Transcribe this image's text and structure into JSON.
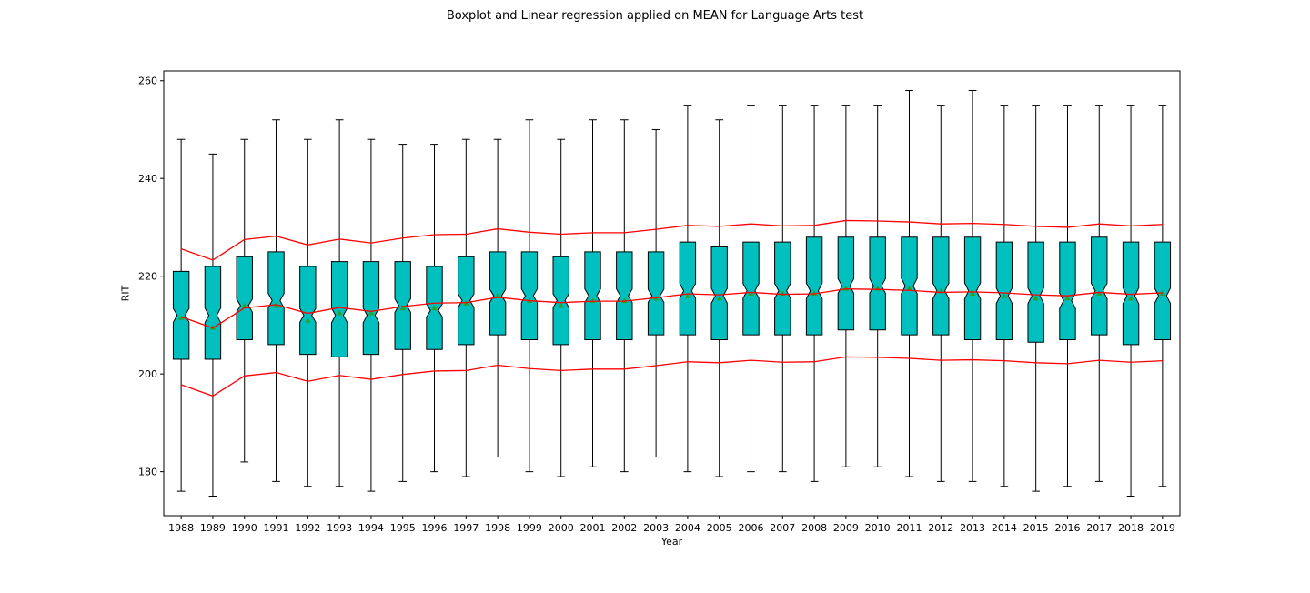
{
  "chart_data": {
    "type": "boxplot",
    "title": "Boxplot and Linear regression applied on MEAN for Language Arts test",
    "xlabel": "Year",
    "ylabel": "RIT",
    "ylim": [
      171,
      262
    ],
    "yticks": [
      180,
      200,
      220,
      240,
      260
    ],
    "colors": {
      "box_fill": "#00bfbf",
      "box_edge": "#000000",
      "regression_line": "#ff0000",
      "mean_marker": "#2ca02c"
    },
    "categories": [
      "1988",
      "1989",
      "1990",
      "1991",
      "1992",
      "1993",
      "1994",
      "1995",
      "1996",
      "1997",
      "1998",
      "1999",
      "2000",
      "2001",
      "2002",
      "2003",
      "2004",
      "2005",
      "2006",
      "2007",
      "2008",
      "2009",
      "2010",
      "2011",
      "2012",
      "2013",
      "2014",
      "2015",
      "2016",
      "2017",
      "2018",
      "2019"
    ],
    "boxes": [
      {
        "whislo": 176,
        "q1": 203,
        "med": 212,
        "q3": 221,
        "whishi": 248,
        "mean": 211.5
      },
      {
        "whislo": 175,
        "q1": 203,
        "med": 212,
        "q3": 222,
        "whishi": 245,
        "mean": 209.5
      },
      {
        "whislo": 182,
        "q1": 207,
        "med": 214,
        "q3": 224,
        "whishi": 248,
        "mean": 214
      },
      {
        "whislo": 178,
        "q1": 206,
        "med": 215,
        "q3": 225,
        "whishi": 252,
        "mean": 214
      },
      {
        "whislo": 177,
        "q1": 204,
        "med": 212,
        "q3": 222,
        "whishi": 248,
        "mean": 211
      },
      {
        "whislo": 177,
        "q1": 203.5,
        "med": 212,
        "q3": 223,
        "whishi": 252,
        "mean": 212.5
      },
      {
        "whislo": 176,
        "q1": 204,
        "med": 212,
        "q3": 223,
        "whishi": 248,
        "mean": 212.5
      },
      {
        "whislo": 178,
        "q1": 205,
        "med": 214,
        "q3": 223,
        "whishi": 247,
        "mean": 213.5
      },
      {
        "whislo": 180,
        "q1": 205,
        "med": 213,
        "q3": 222,
        "whishi": 247,
        "mean": 213.5
      },
      {
        "whislo": 179,
        "q1": 206,
        "med": 215,
        "q3": 224,
        "whishi": 248,
        "mean": 214.5
      },
      {
        "whislo": 183,
        "q1": 208,
        "med": 216,
        "q3": 225,
        "whishi": 248,
        "mean": 216
      },
      {
        "whislo": 180,
        "q1": 207,
        "med": 216,
        "q3": 225,
        "whishi": 252,
        "mean": 215
      },
      {
        "whislo": 179,
        "q1": 206,
        "med": 215,
        "q3": 224,
        "whishi": 248,
        "mean": 214
      },
      {
        "whislo": 181,
        "q1": 207,
        "med": 216,
        "q3": 225,
        "whishi": 252,
        "mean": 215
      },
      {
        "whislo": 180,
        "q1": 207,
        "med": 216,
        "q3": 225,
        "whishi": 252,
        "mean": 215
      },
      {
        "whislo": 183,
        "q1": 208,
        "med": 216,
        "q3": 225,
        "whishi": 250,
        "mean": 215.5
      },
      {
        "whislo": 180,
        "q1": 208,
        "med": 217,
        "q3": 227,
        "whishi": 255,
        "mean": 216
      },
      {
        "whislo": 179,
        "q1": 207,
        "med": 216,
        "q3": 226,
        "whishi": 252,
        "mean": 215.5
      },
      {
        "whislo": 180,
        "q1": 208,
        "med": 217,
        "q3": 227,
        "whishi": 255,
        "mean": 216.5
      },
      {
        "whislo": 180,
        "q1": 208,
        "med": 217,
        "q3": 227,
        "whishi": 255,
        "mean": 216.5
      },
      {
        "whislo": 178,
        "q1": 208,
        "med": 217,
        "q3": 228,
        "whishi": 255,
        "mean": 216.5
      },
      {
        "whislo": 181,
        "q1": 209,
        "med": 218,
        "q3": 228,
        "whishi": 255,
        "mean": 217.5
      },
      {
        "whislo": 181,
        "q1": 209,
        "med": 218,
        "q3": 228,
        "whishi": 255,
        "mean": 217.5
      },
      {
        "whislo": 179,
        "q1": 208,
        "med": 218,
        "q3": 228,
        "whishi": 258,
        "mean": 217.5
      },
      {
        "whislo": 178,
        "q1": 208,
        "med": 217,
        "q3": 228,
        "whishi": 255,
        "mean": 217
      },
      {
        "whislo": 178,
        "q1": 207,
        "med": 217,
        "q3": 228,
        "whishi": 258,
        "mean": 216.5
      },
      {
        "whislo": 177,
        "q1": 207,
        "med": 216,
        "q3": 227,
        "whishi": 255,
        "mean": 216
      },
      {
        "whislo": 176,
        "q1": 206.5,
        "med": 216,
        "q3": 227,
        "whishi": 255,
        "mean": 215.5
      },
      {
        "whislo": 177,
        "q1": 207,
        "med": 215,
        "q3": 227,
        "whishi": 255,
        "mean": 215.5
      },
      {
        "whislo": 178,
        "q1": 208,
        "med": 217,
        "q3": 228,
        "whishi": 255,
        "mean": 216.5
      },
      {
        "whislo": 175,
        "q1": 206,
        "med": 216,
        "q3": 227,
        "whishi": 255,
        "mean": 215.5
      },
      {
        "whislo": 177,
        "q1": 207,
        "med": 216,
        "q3": 227,
        "whishi": 255,
        "mean": 216.5
      }
    ],
    "regression_mean": [
      211.7,
      209.4,
      213.5,
      214.2,
      212.4,
      213.6,
      212.8,
      213.8,
      214.5,
      214.6,
      215.7,
      215.0,
      214.6,
      214.9,
      214.9,
      215.6,
      216.4,
      216.2,
      216.7,
      216.3,
      216.4,
      217.4,
      217.3,
      217.1,
      216.7,
      216.8,
      216.6,
      216.2,
      216.0,
      216.7,
      216.3,
      216.6
    ],
    "regression_upper": [
      225.6,
      223.3,
      227.5,
      228.2,
      226.4,
      227.6,
      226.8,
      227.8,
      228.5,
      228.6,
      229.7,
      229.0,
      228.6,
      228.9,
      228.9,
      229.6,
      230.4,
      230.2,
      230.7,
      230.3,
      230.4,
      231.4,
      231.3,
      231.1,
      230.7,
      230.8,
      230.6,
      230.2,
      230.0,
      230.7,
      230.3,
      230.6
    ],
    "regression_lower": [
      197.8,
      195.5,
      199.6,
      200.3,
      198.5,
      199.7,
      198.9,
      199.9,
      200.6,
      200.7,
      201.8,
      201.1,
      200.7,
      201.0,
      201.0,
      201.7,
      202.5,
      202.3,
      202.8,
      202.4,
      202.5,
      203.5,
      203.4,
      203.2,
      202.8,
      202.9,
      202.7,
      202.3,
      202.1,
      202.8,
      202.4,
      202.7
    ]
  }
}
